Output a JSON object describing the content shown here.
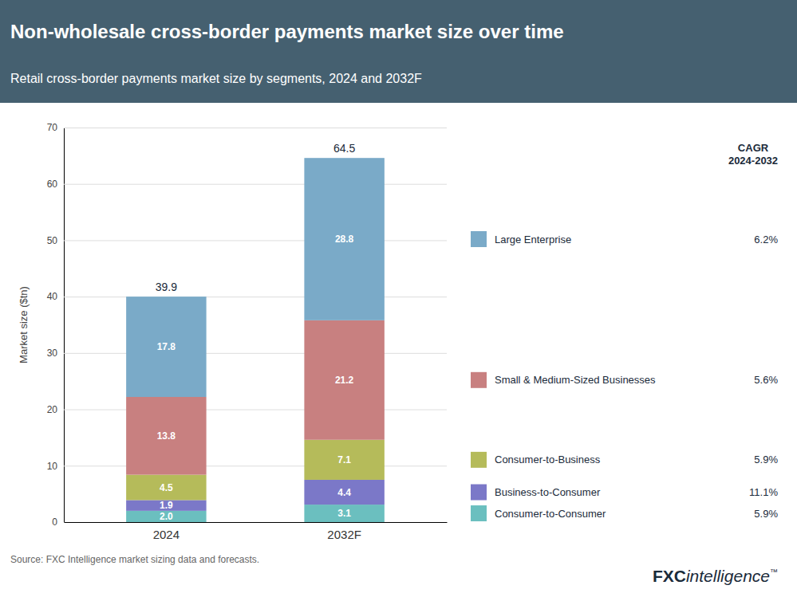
{
  "chart_data": {
    "type": "bar",
    "stacked": true,
    "data_labels": true,
    "grid": true,
    "legend": "right",
    "title": "Non-wholesale cross-border payments market size over time",
    "subtitle": "Retail cross-border payments market size by segments, 2024 and 2032F",
    "categories": [
      "2024",
      "2032F"
    ],
    "series": [
      {
        "name": "Consumer-to-Consumer",
        "color": "#6bbfbf",
        "values": [
          2.0,
          3.1
        ],
        "value_labels": [
          "2.0",
          "3.1"
        ],
        "cagr": {
          "value": 5.9,
          "label": "5.9%"
        }
      },
      {
        "name": "Business-to-Consumer",
        "color": "#7b78c8",
        "values": [
          1.9,
          4.4
        ],
        "value_labels": [
          "1.9",
          "4.4"
        ],
        "cagr": {
          "value": 11.1,
          "label": "11.1%"
        }
      },
      {
        "name": "Consumer-to-Business",
        "color": "#b5bb5a",
        "values": [
          4.5,
          7.1
        ],
        "value_labels": [
          "4.5",
          "7.1"
        ],
        "cagr": {
          "value": 5.9,
          "label": "5.9%"
        }
      },
      {
        "name": "Small & Medium-Sized Businesses",
        "color": "#c88080",
        "values": [
          13.8,
          21.2
        ],
        "value_labels": [
          "13.8",
          "21.2"
        ],
        "cagr": {
          "value": 5.6,
          "label": "5.6%"
        }
      },
      {
        "name": "Large Enterprise",
        "color": "#7aaac8",
        "values": [
          17.8,
          28.8
        ],
        "value_labels": [
          "17.8",
          "28.8"
        ],
        "cagr": {
          "value": 6.2,
          "label": "6.2%"
        }
      }
    ],
    "totals": [
      39.9,
      64.5
    ],
    "ylabel": "Market size ($tn)",
    "ylim": [
      0,
      70
    ],
    "yticks": [
      0,
      10,
      20,
      30,
      40,
      50,
      60,
      70
    ],
    "cagr_header": "CAGR\n2024-2032",
    "source": "Source: FXC Intelligence market sizing data and forecasts.",
    "logo": [
      "FXC",
      "intelligence",
      "™"
    ]
  }
}
